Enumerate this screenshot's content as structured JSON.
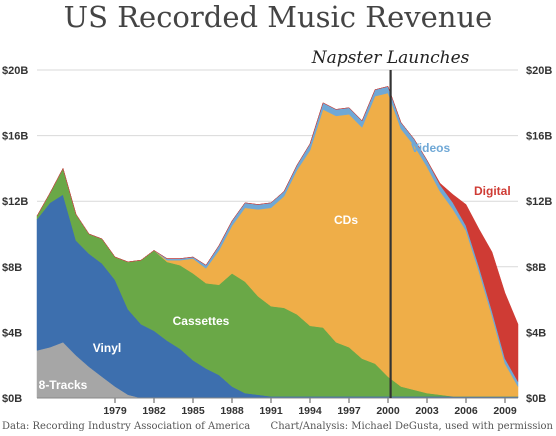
{
  "chart_data": {
    "type": "area",
    "title": "US Recorded Music Revenue",
    "x": [
      1973,
      1974,
      1975,
      1976,
      1977,
      1978,
      1979,
      1980,
      1981,
      1982,
      1983,
      1984,
      1985,
      1986,
      1987,
      1988,
      1989,
      1990,
      1991,
      1992,
      1993,
      1994,
      1995,
      1996,
      1997,
      1998,
      1999,
      2000,
      2001,
      2002,
      2003,
      2004,
      2005,
      2006,
      2007,
      2008,
      2009,
      2010
    ],
    "series": [
      {
        "name": "8-Tracks",
        "color": "#a6a6a6",
        "values": [
          2.9,
          3.1,
          3.4,
          2.6,
          1.9,
          1.3,
          0.7,
          0.2,
          0,
          0,
          0,
          0,
          0,
          0,
          0,
          0,
          0,
          0,
          0,
          0,
          0,
          0,
          0,
          0,
          0,
          0,
          0,
          0,
          0,
          0,
          0,
          0,
          0,
          0,
          0,
          0,
          0,
          0
        ]
      },
      {
        "name": "Vinyl",
        "color": "#3d6fae",
        "values": [
          8.0,
          8.8,
          9.0,
          7.0,
          6.9,
          6.9,
          6.5,
          5.2,
          4.5,
          4.1,
          3.5,
          3.0,
          2.3,
          1.8,
          1.4,
          0.7,
          0.3,
          0.2,
          0.1,
          0.1,
          0.1,
          0.1,
          0.1,
          0.1,
          0.1,
          0.1,
          0.1,
          0.1,
          0.1,
          0.1,
          0.1,
          0.1,
          0.1,
          0.1,
          0.1,
          0.1,
          0.1,
          0.1
        ]
      },
      {
        "name": "Cassettes",
        "color": "#6aa847",
        "values": [
          0.2,
          0.6,
          1.6,
          1.6,
          1.2,
          1.5,
          1.4,
          2.9,
          3.9,
          4.9,
          4.8,
          5.1,
          5.3,
          5.2,
          5.5,
          6.9,
          6.8,
          6.0,
          5.5,
          5.4,
          5.0,
          4.3,
          4.2,
          3.3,
          3.0,
          2.3,
          2.0,
          1.2,
          0.6,
          0.4,
          0.2,
          0.1,
          0,
          0,
          0,
          0,
          0,
          0
        ]
      },
      {
        "name": "CDs",
        "color": "#efae48",
        "values": [
          0,
          0,
          0,
          0,
          0,
          0,
          0,
          0,
          0,
          0,
          0.1,
          0.3,
          0.9,
          0.9,
          2.1,
          2.9,
          4.5,
          5.3,
          6.0,
          6.8,
          8.8,
          10.7,
          13.3,
          13.8,
          14.2,
          14.1,
          16.3,
          17.3,
          15.7,
          14.9,
          13.8,
          12.4,
          11.4,
          10.1,
          7.6,
          4.9,
          2.0,
          0.6
        ]
      },
      {
        "name": "Videos",
        "color": "#6fa8d6",
        "values": [
          0,
          0,
          0,
          0,
          0,
          0,
          0,
          0,
          0,
          0,
          0.1,
          0.1,
          0.1,
          0.2,
          0.3,
          0.3,
          0.3,
          0.3,
          0.3,
          0.3,
          0.3,
          0.4,
          0.4,
          0.4,
          0.4,
          0.4,
          0.4,
          0.4,
          0.4,
          0.4,
          0.4,
          0.4,
          0.4,
          0.3,
          0.3,
          0.3,
          0.3,
          0.3
        ]
      },
      {
        "name": "Digital",
        "color": "#cf3b34",
        "values": [
          0,
          0,
          0,
          0,
          0,
          0,
          0,
          0,
          0,
          0,
          0,
          0,
          0,
          0,
          0,
          0,
          0,
          0,
          0,
          0,
          0,
          0,
          0,
          0,
          0,
          0,
          0,
          0,
          0,
          0,
          0,
          0.1,
          0.5,
          1.3,
          2.3,
          3.6,
          4.0,
          3.5
        ]
      }
    ],
    "xticks": [
      "1979",
      "1982",
      "1985",
      "1988",
      "1991",
      "1994",
      "1997",
      "2000",
      "2003",
      "2006",
      "2009"
    ],
    "xtick_years": [
      1979,
      1982,
      1985,
      1988,
      1991,
      1994,
      1997,
      2000,
      2003,
      2006,
      2009
    ],
    "yticks": [
      "$0B",
      "$4B",
      "$8B",
      "$12B",
      "$16B",
      "$20B"
    ],
    "ytick_values": [
      0,
      4,
      8,
      12,
      16,
      20
    ],
    "ylim": [
      0,
      20.5
    ],
    "xlim": [
      1973,
      2010
    ],
    "grid": true,
    "annotation": {
      "text": "Napster Launches",
      "year": 2000.2
    },
    "label_colors": {
      "8-Tracks": "#ffffff",
      "Vinyl": "#ffffff",
      "Cassettes": "#ffffff",
      "CDs": "#ffffff",
      "Videos": "#6fa8d6",
      "Digital": "#cf3b34"
    },
    "source_left": "Data: Recording Industry Association of America",
    "source_right": "Chart/Analysis: Michael DeGusta, used with permission"
  }
}
